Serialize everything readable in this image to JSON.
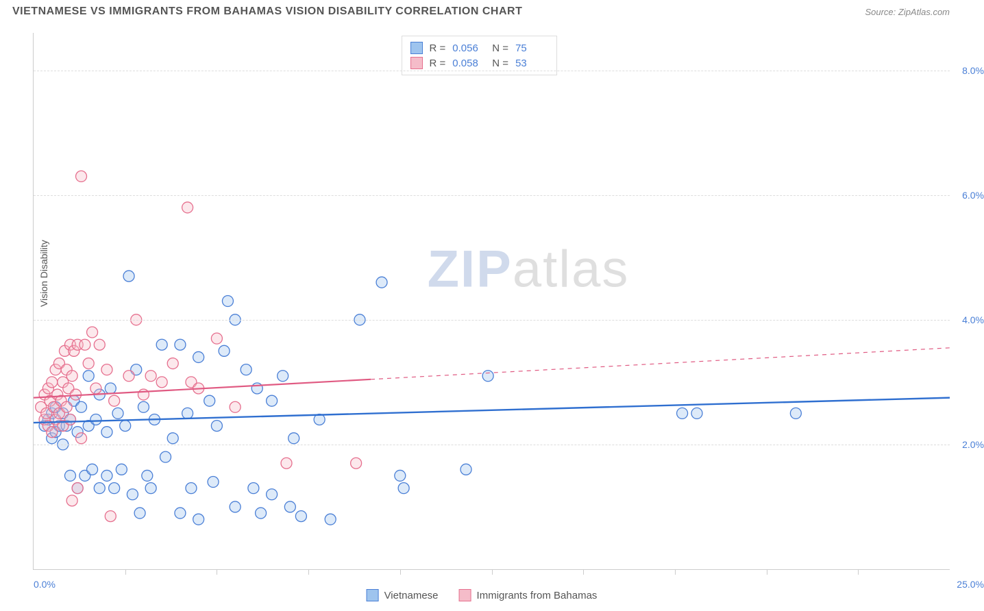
{
  "title": "VIETNAMESE VS IMMIGRANTS FROM BAHAMAS VISION DISABILITY CORRELATION CHART",
  "source": "Source: ZipAtlas.com",
  "y_axis_label": "Vision Disability",
  "watermark": {
    "bold": "ZIP",
    "rest": "atlas"
  },
  "chart": {
    "type": "scatter",
    "xlim": [
      0,
      25
    ],
    "ylim": [
      0,
      8.6
    ],
    "x_min_label": "0.0%",
    "x_max_label": "25.0%",
    "y_ticks": [
      2,
      4,
      6,
      8
    ],
    "y_tick_labels": [
      "2.0%",
      "4.0%",
      "6.0%",
      "8.0%"
    ],
    "x_ticks": [
      2.5,
      5,
      7.5,
      10,
      12.5,
      15,
      17.5,
      20,
      22.5
    ],
    "background_color": "#ffffff",
    "grid_color": "#dddddd",
    "marker_radius": 8,
    "marker_stroke_width": 1.3,
    "marker_fill_opacity": 0.35,
    "series": [
      {
        "id": "vietnamese",
        "label": "Vietnamese",
        "color_fill": "#9ec4ee",
        "color_stroke": "#4a7fd6",
        "r_value": "0.056",
        "n_value": "75",
        "trend": {
          "y_at_x0": 2.35,
          "y_at_x25": 2.75,
          "solid_until_x": 25,
          "stroke": "#2f6fd0",
          "width": 2.4
        },
        "points": [
          [
            0.3,
            2.3
          ],
          [
            0.4,
            2.4
          ],
          [
            0.5,
            2.1
          ],
          [
            0.5,
            2.5
          ],
          [
            0.6,
            2.2
          ],
          [
            0.6,
            2.6
          ],
          [
            0.7,
            2.3
          ],
          [
            0.8,
            2.0
          ],
          [
            0.8,
            2.5
          ],
          [
            0.9,
            2.3
          ],
          [
            1.0,
            2.4
          ],
          [
            1.0,
            1.5
          ],
          [
            1.1,
            2.7
          ],
          [
            1.2,
            2.2
          ],
          [
            1.2,
            1.3
          ],
          [
            1.3,
            2.6
          ],
          [
            1.4,
            1.5
          ],
          [
            1.5,
            2.3
          ],
          [
            1.5,
            3.1
          ],
          [
            1.6,
            1.6
          ],
          [
            1.7,
            2.4
          ],
          [
            1.8,
            1.3
          ],
          [
            1.8,
            2.8
          ],
          [
            2.0,
            2.2
          ],
          [
            2.0,
            1.5
          ],
          [
            2.1,
            2.9
          ],
          [
            2.2,
            1.3
          ],
          [
            2.3,
            2.5
          ],
          [
            2.4,
            1.6
          ],
          [
            2.5,
            2.3
          ],
          [
            2.6,
            4.7
          ],
          [
            2.7,
            1.2
          ],
          [
            2.8,
            3.2
          ],
          [
            2.9,
            0.9
          ],
          [
            3.0,
            2.6
          ],
          [
            3.1,
            1.5
          ],
          [
            3.2,
            1.3
          ],
          [
            3.3,
            2.4
          ],
          [
            3.5,
            3.6
          ],
          [
            3.6,
            1.8
          ],
          [
            3.8,
            2.1
          ],
          [
            4.0,
            0.9
          ],
          [
            4.0,
            3.6
          ],
          [
            4.2,
            2.5
          ],
          [
            4.3,
            1.3
          ],
          [
            4.5,
            3.4
          ],
          [
            4.5,
            0.8
          ],
          [
            4.8,
            2.7
          ],
          [
            4.9,
            1.4
          ],
          [
            5.0,
            2.3
          ],
          [
            5.2,
            3.5
          ],
          [
            5.3,
            4.3
          ],
          [
            5.5,
            4.0
          ],
          [
            5.5,
            1.0
          ],
          [
            5.8,
            3.2
          ],
          [
            6.0,
            1.3
          ],
          [
            6.1,
            2.9
          ],
          [
            6.2,
            0.9
          ],
          [
            6.5,
            1.2
          ],
          [
            6.5,
            2.7
          ],
          [
            6.8,
            3.1
          ],
          [
            7.0,
            1.0
          ],
          [
            7.1,
            2.1
          ],
          [
            7.3,
            0.85
          ],
          [
            7.8,
            2.4
          ],
          [
            8.1,
            0.8
          ],
          [
            8.9,
            4.0
          ],
          [
            9.5,
            4.6
          ],
          [
            10.0,
            1.5
          ],
          [
            10.1,
            1.3
          ],
          [
            11.8,
            1.6
          ],
          [
            12.4,
            3.1
          ],
          [
            17.7,
            2.5
          ],
          [
            18.1,
            2.5
          ],
          [
            20.8,
            2.5
          ]
        ]
      },
      {
        "id": "bahamas",
        "label": "Immigrants from Bahamas",
        "color_fill": "#f5bcc9",
        "color_stroke": "#e66f8e",
        "r_value": "0.058",
        "n_value": "53",
        "trend": {
          "y_at_x0": 2.75,
          "y_at_x25": 3.55,
          "solid_until_x": 9.2,
          "stroke": "#e05a82",
          "width": 2.2,
          "dash": "6,6"
        },
        "points": [
          [
            0.2,
            2.6
          ],
          [
            0.3,
            2.4
          ],
          [
            0.3,
            2.8
          ],
          [
            0.35,
            2.5
          ],
          [
            0.4,
            2.3
          ],
          [
            0.4,
            2.9
          ],
          [
            0.45,
            2.7
          ],
          [
            0.5,
            2.2
          ],
          [
            0.5,
            3.0
          ],
          [
            0.55,
            2.6
          ],
          [
            0.6,
            2.4
          ],
          [
            0.6,
            3.2
          ],
          [
            0.65,
            2.8
          ],
          [
            0.7,
            2.5
          ],
          [
            0.7,
            3.3
          ],
          [
            0.75,
            2.7
          ],
          [
            0.8,
            3.0
          ],
          [
            0.8,
            2.3
          ],
          [
            0.85,
            3.5
          ],
          [
            0.9,
            2.6
          ],
          [
            0.9,
            3.2
          ],
          [
            0.95,
            2.9
          ],
          [
            1.0,
            3.6
          ],
          [
            1.0,
            2.4
          ],
          [
            1.05,
            3.1
          ],
          [
            1.1,
            3.5
          ],
          [
            1.15,
            2.8
          ],
          [
            1.2,
            3.6
          ],
          [
            1.2,
            1.3
          ],
          [
            1.3,
            2.1
          ],
          [
            1.3,
            6.3
          ],
          [
            1.4,
            3.6
          ],
          [
            1.5,
            3.3
          ],
          [
            1.6,
            3.8
          ],
          [
            1.7,
            2.9
          ],
          [
            1.8,
            3.6
          ],
          [
            2.0,
            3.2
          ],
          [
            2.1,
            0.85
          ],
          [
            2.2,
            2.7
          ],
          [
            2.6,
            3.1
          ],
          [
            2.8,
            4.0
          ],
          [
            3.0,
            2.8
          ],
          [
            3.2,
            3.1
          ],
          [
            3.5,
            3.0
          ],
          [
            3.8,
            3.3
          ],
          [
            4.2,
            5.8
          ],
          [
            4.3,
            3.0
          ],
          [
            4.5,
            2.9
          ],
          [
            5.0,
            3.7
          ],
          [
            5.5,
            2.6
          ],
          [
            6.9,
            1.7
          ],
          [
            8.8,
            1.7
          ],
          [
            1.05,
            1.1
          ]
        ]
      }
    ]
  },
  "stats_legend": {
    "r_label": "R =",
    "n_label": "N ="
  },
  "bottom_legend": {
    "items": [
      "Vietnamese",
      "Immigrants from Bahamas"
    ]
  }
}
